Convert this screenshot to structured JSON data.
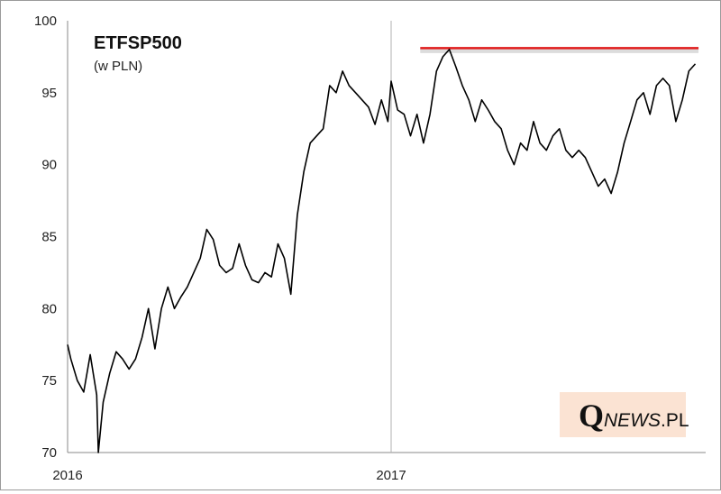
{
  "chart_data": {
    "type": "line",
    "title": "ETFSP500",
    "subtitle": "(w PLN)",
    "xlabel": "",
    "ylabel": "",
    "ylim": [
      70,
      100
    ],
    "y_ticks": [
      "70",
      "75",
      "80",
      "85",
      "90",
      "95",
      "100"
    ],
    "x_ticks": [
      "2016",
      "2017"
    ],
    "grid": false,
    "colors": {
      "series": "#000000",
      "reference_line": "#e11b1b",
      "logo_box": "#fbe3d3"
    },
    "series": [
      {
        "x": [
          2016.0,
          2016.01,
          2016.03,
          2016.05,
          2016.07,
          2016.09,
          2016.095,
          2016.11,
          2016.13,
          2016.15,
          2016.17,
          2016.19,
          2016.21,
          2016.23,
          2016.25,
          2016.27,
          2016.29,
          2016.31,
          2016.33,
          2016.35,
          2016.37,
          2016.39,
          2016.41,
          2016.43,
          2016.45,
          2016.47,
          2016.49,
          2016.51,
          2016.53,
          2016.55,
          2016.57,
          2016.59,
          2016.61,
          2016.63,
          2016.65,
          2016.67,
          2016.69,
          2016.71,
          2016.73,
          2016.75,
          2016.77,
          2016.79,
          2016.81,
          2016.83,
          2016.85,
          2016.87,
          2016.89,
          2016.91,
          2016.93,
          2016.95,
          2016.97,
          2016.99,
          2017.0,
          2017.02,
          2017.04,
          2017.06,
          2017.08,
          2017.1,
          2017.12,
          2017.14,
          2017.16,
          2017.18,
          2017.2,
          2017.22,
          2017.24,
          2017.26,
          2017.28,
          2017.3,
          2017.32,
          2017.34,
          2017.36,
          2017.38,
          2017.4,
          2017.42,
          2017.44,
          2017.46,
          2017.48,
          2017.5,
          2017.52,
          2017.54,
          2017.56,
          2017.58,
          2017.6,
          2017.62,
          2017.64,
          2017.66,
          2017.68,
          2017.7,
          2017.72,
          2017.74,
          2017.76,
          2017.78,
          2017.8,
          2017.82,
          2017.84,
          2017.86,
          2017.88,
          2017.9,
          2017.92,
          2017.94
        ],
        "values": [
          77.5,
          76.5,
          75.0,
          74.2,
          76.8,
          74.0,
          70.0,
          73.5,
          75.5,
          77.0,
          76.5,
          75.8,
          76.5,
          78.0,
          80.0,
          77.2,
          80.0,
          81.5,
          80.0,
          80.8,
          81.5,
          82.5,
          83.5,
          85.5,
          84.8,
          83.0,
          82.5,
          82.8,
          84.5,
          83.0,
          82.0,
          81.8,
          82.5,
          82.2,
          84.5,
          83.5,
          81.0,
          86.5,
          89.5,
          91.5,
          92.0,
          92.5,
          95.5,
          95.0,
          96.5,
          95.5,
          95.0,
          94.5,
          94.0,
          92.8,
          94.5,
          93.0,
          95.8,
          93.8,
          93.5,
          92.0,
          93.5,
          91.5,
          93.5,
          96.5,
          97.5,
          98.0,
          96.8,
          95.5,
          94.5,
          93.0,
          94.5,
          93.8,
          93.0,
          92.5,
          91.0,
          90.0,
          91.5,
          91.0,
          93.0,
          91.5,
          91.0,
          92.0,
          92.5,
          91.0,
          90.5,
          91.0,
          90.5,
          89.5,
          88.5,
          89.0,
          88.0,
          89.5,
          91.5,
          93.0,
          94.5,
          95.0,
          93.5,
          95.5,
          96.0,
          95.5,
          93.0,
          94.5,
          96.5,
          97.0
        ]
      }
    ],
    "reference_line": {
      "y": 98.1,
      "x_start": 2017.09,
      "x_end": 2017.95
    }
  },
  "logo": {
    "q": "Q",
    "news": "NEWS",
    "pl": ".PL"
  }
}
